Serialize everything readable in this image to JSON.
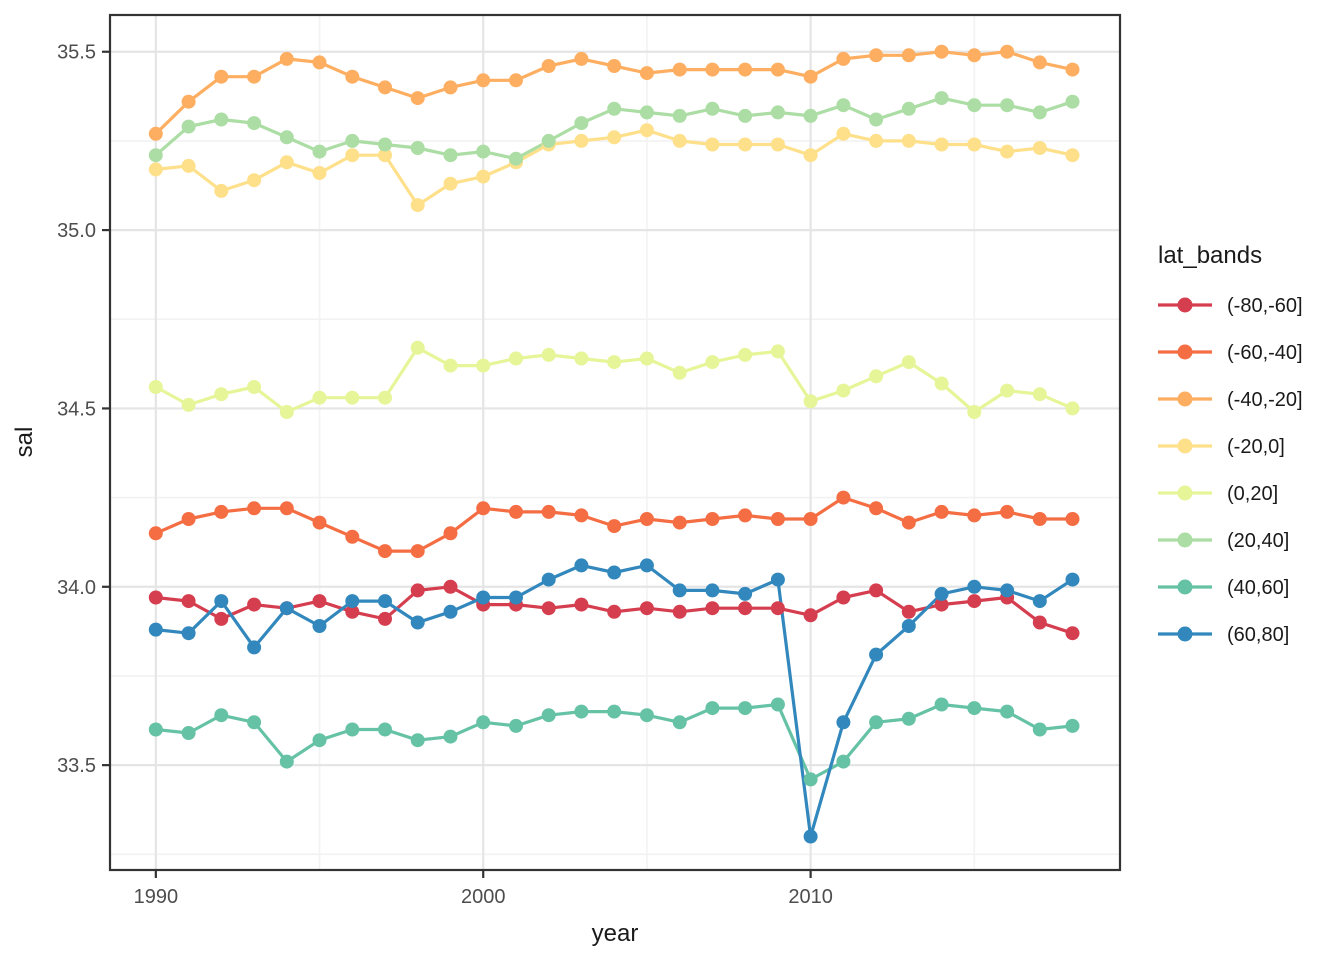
{
  "figure": {
    "xlabel": "year",
    "ylabel": "sal"
  },
  "chart_data": {
    "type": "line",
    "title": "",
    "xlabel": "year",
    "ylabel": "sal",
    "legend_title": "lat_bands",
    "legend_position": "right",
    "grid": true,
    "xlim": [
      1988.6,
      2019.45
    ],
    "ylim": [
      33.206,
      35.603
    ],
    "x_ticks": [
      1990,
      2000,
      2010
    ],
    "x_tick_labels": [
      "1990",
      "2000",
      "2010"
    ],
    "x_minor_ticks": [
      1995,
      2005,
      2015
    ],
    "y_ticks": [
      33.5,
      34.0,
      34.5,
      35.0,
      35.5
    ],
    "y_tick_labels": [
      "33.5",
      "34.0",
      "34.5",
      "35.0",
      "35.5"
    ],
    "y_minor_ticks": [
      33.25,
      33.75,
      34.25,
      34.75,
      35.25
    ],
    "x": [
      1990,
      1991,
      1992,
      1993,
      1994,
      1995,
      1996,
      1997,
      1998,
      1999,
      2000,
      2001,
      2002,
      2003,
      2004,
      2005,
      2006,
      2007,
      2008,
      2009,
      2010,
      2011,
      2012,
      2013,
      2014,
      2015,
      2016,
      2017,
      2018
    ],
    "series": [
      {
        "name": "(-80,-60]",
        "color": "#d53e4f",
        "values": [
          33.97,
          33.96,
          33.91,
          33.95,
          33.94,
          33.96,
          33.93,
          33.91,
          33.99,
          34.0,
          33.95,
          33.95,
          33.94,
          33.95,
          33.93,
          33.94,
          33.93,
          33.94,
          33.94,
          33.94,
          33.92,
          33.97,
          33.99,
          33.93,
          33.95,
          33.96,
          33.97,
          33.9,
          33.87
        ]
      },
      {
        "name": "(-60,-40]",
        "color": "#f46d43",
        "values": [
          34.15,
          34.19,
          34.21,
          34.22,
          34.22,
          34.18,
          34.14,
          34.1,
          34.1,
          34.15,
          34.22,
          34.21,
          34.21,
          34.2,
          34.17,
          34.19,
          34.18,
          34.19,
          34.2,
          34.19,
          34.19,
          34.25,
          34.22,
          34.18,
          34.21,
          34.2,
          34.21,
          34.19,
          34.19
        ]
      },
      {
        "name": "(-40,-20]",
        "color": "#fdae61",
        "values": [
          35.27,
          35.36,
          35.43,
          35.43,
          35.48,
          35.47,
          35.43,
          35.4,
          35.37,
          35.4,
          35.42,
          35.42,
          35.46,
          35.48,
          35.46,
          35.44,
          35.45,
          35.45,
          35.45,
          35.45,
          35.43,
          35.48,
          35.49,
          35.49,
          35.5,
          35.49,
          35.5,
          35.47,
          35.45
        ]
      },
      {
        "name": "(-20,0]",
        "color": "#fee08b",
        "values": [
          35.17,
          35.18,
          35.11,
          35.14,
          35.19,
          35.16,
          35.21,
          35.21,
          35.07,
          35.13,
          35.15,
          35.19,
          35.24,
          35.25,
          35.26,
          35.28,
          35.25,
          35.24,
          35.24,
          35.24,
          35.21,
          35.27,
          35.25,
          35.25,
          35.24,
          35.24,
          35.22,
          35.23,
          35.21
        ]
      },
      {
        "name": "(0,20]",
        "color": "#e6f598",
        "values": [
          34.56,
          34.51,
          34.54,
          34.56,
          34.49,
          34.53,
          34.53,
          34.53,
          34.67,
          34.62,
          34.62,
          34.64,
          34.65,
          34.64,
          34.63,
          34.64,
          34.6,
          34.63,
          34.65,
          34.66,
          34.52,
          34.55,
          34.59,
          34.63,
          34.57,
          34.49,
          34.55,
          34.54,
          34.5
        ]
      },
      {
        "name": "(20,40]",
        "color": "#abdda4",
        "values": [
          35.21,
          35.29,
          35.31,
          35.3,
          35.26,
          35.22,
          35.25,
          35.24,
          35.23,
          35.21,
          35.22,
          35.2,
          35.25,
          35.3,
          35.34,
          35.33,
          35.32,
          35.34,
          35.32,
          35.33,
          35.32,
          35.35,
          35.31,
          35.34,
          35.37,
          35.35,
          35.35,
          35.33,
          35.36
        ]
      },
      {
        "name": "(40,60]",
        "color": "#66c2a5",
        "values": [
          33.6,
          33.59,
          33.64,
          33.62,
          33.51,
          33.57,
          33.6,
          33.6,
          33.57,
          33.58,
          33.62,
          33.61,
          33.64,
          33.65,
          33.65,
          33.64,
          33.62,
          33.66,
          33.66,
          33.67,
          33.46,
          33.51,
          33.62,
          33.63,
          33.67,
          33.66,
          33.65,
          33.6,
          33.61
        ]
      },
      {
        "name": "(60,80]",
        "color": "#3288bd",
        "values": [
          33.88,
          33.87,
          33.96,
          33.83,
          33.94,
          33.89,
          33.96,
          33.96,
          33.9,
          33.93,
          33.97,
          33.97,
          34.02,
          34.06,
          34.04,
          34.06,
          33.99,
          33.99,
          33.98,
          34.02,
          33.3,
          33.62,
          33.81,
          33.89,
          33.98,
          34.0,
          33.99,
          33.96,
          34.02
        ]
      }
    ],
    "style": {
      "panel_border": "#333333",
      "grid_major": "#e5e5e5",
      "grid_minor": "#f2f2f2",
      "tick_mark": "#333333",
      "tick_label": "#4d4d4d",
      "background": "#ffffff",
      "point_radius": 7,
      "line_width": 3.2
    }
  }
}
